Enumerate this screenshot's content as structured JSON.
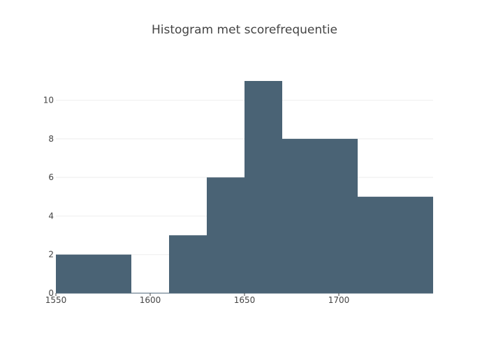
{
  "chart_data": {
    "type": "bar",
    "title": "Histogram met scorefrequentie",
    "xlabel": "",
    "ylabel": "",
    "bins": [
      {
        "start": 1550,
        "end": 1570,
        "count": 2
      },
      {
        "start": 1570,
        "end": 1590,
        "count": 2
      },
      {
        "start": 1590,
        "end": 1610,
        "count": 0
      },
      {
        "start": 1610,
        "end": 1630,
        "count": 3
      },
      {
        "start": 1630,
        "end": 1650,
        "count": 6
      },
      {
        "start": 1650,
        "end": 1670,
        "count": 11
      },
      {
        "start": 1670,
        "end": 1690,
        "count": 8
      },
      {
        "start": 1690,
        "end": 1710,
        "count": 8
      },
      {
        "start": 1710,
        "end": 1730,
        "count": 5
      },
      {
        "start": 1730,
        "end": 1750,
        "count": 5
      }
    ],
    "xlim": [
      1550,
      1750
    ],
    "ylim": [
      0,
      11
    ],
    "xticks": [
      1550,
      1600,
      1650,
      1700
    ],
    "yticks": [
      0,
      2,
      4,
      6,
      8,
      10
    ],
    "grid": true,
    "bar_color": "#4a6375",
    "grid_color": "#eeeeee"
  }
}
